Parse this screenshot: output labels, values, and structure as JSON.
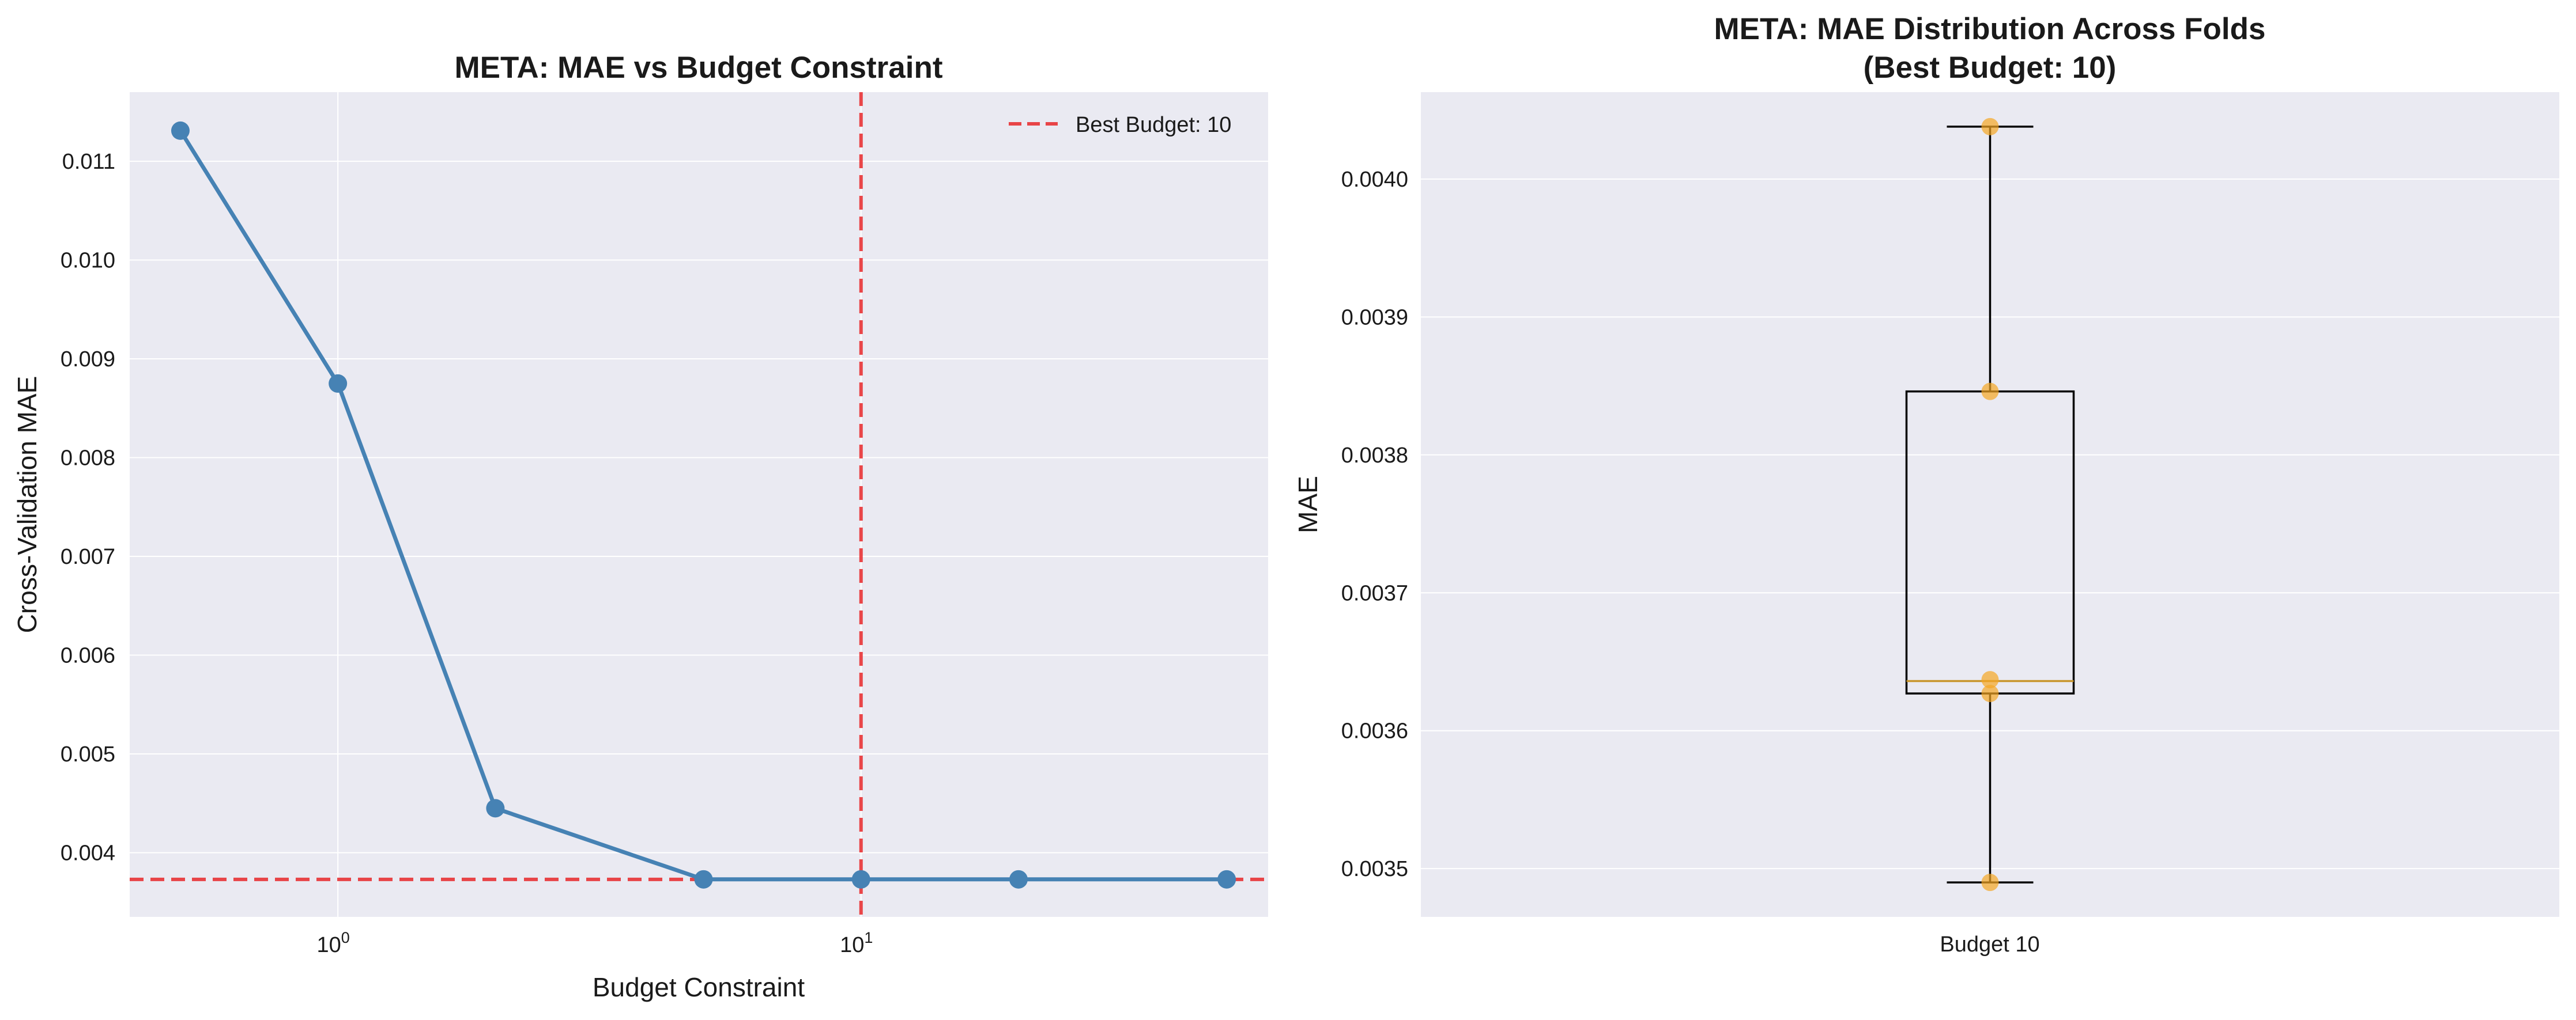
{
  "chart_data": [
    {
      "type": "line",
      "title": "META: MAE vs Budget Constraint",
      "xlabel": "Budget Constraint",
      "ylabel": "Cross-Validation MAE",
      "x_scale": "log",
      "xlim": [
        0.4,
        60
      ],
      "ylim": [
        0.00335,
        0.0117
      ],
      "x_ticks": [
        {
          "value": 1,
          "base": "10",
          "exp": "0"
        },
        {
          "value": 10,
          "base": "10",
          "exp": "1"
        }
      ],
      "y_ticks": [
        {
          "value": 0.004,
          "label": "0.004"
        },
        {
          "value": 0.005,
          "label": "0.005"
        },
        {
          "value": 0.006,
          "label": "0.006"
        },
        {
          "value": 0.007,
          "label": "0.007"
        },
        {
          "value": 0.008,
          "label": "0.008"
        },
        {
          "value": 0.009,
          "label": "0.009"
        },
        {
          "value": 0.01,
          "label": "0.010"
        },
        {
          "value": 0.011,
          "label": "0.011"
        }
      ],
      "series": [
        {
          "color": "#4682b4",
          "x": [
            0.5,
            1,
            2,
            5,
            10,
            20,
            50
          ],
          "y": [
            0.01131,
            0.00875,
            0.00445,
            0.00373,
            0.00373,
            0.00373,
            0.00373
          ]
        }
      ],
      "reference_lines": {
        "color": "#e8282a",
        "vertical_x": 10,
        "horizontal_y": 0.00373
      },
      "legend": {
        "position": "top-right",
        "entries": [
          "Best Budget: 10"
        ]
      },
      "grid": true
    },
    {
      "type": "box",
      "title_line1": "META: MAE Distribution Across Folds",
      "title_line2": "(Best Budget: 10)",
      "ylabel": "MAE",
      "ylim": [
        0.003465,
        0.004063
      ],
      "categories": [
        "Budget 10"
      ],
      "box": {
        "whisker_low": 0.00349,
        "q1": 0.003627,
        "median": 0.003636,
        "q3": 0.003846,
        "whisker_high": 0.004038,
        "median_color": "#c8962d"
      },
      "points": [
        0.004038,
        0.003846,
        0.003637,
        0.003627,
        0.00349
      ],
      "point_color": "#f5a623",
      "y_ticks": [
        {
          "value": 0.0035,
          "label": "0.0035"
        },
        {
          "value": 0.0036,
          "label": "0.0036"
        },
        {
          "value": 0.0037,
          "label": "0.0037"
        },
        {
          "value": 0.0038,
          "label": "0.0038"
        },
        {
          "value": 0.0039,
          "label": "0.0039"
        },
        {
          "value": 0.004,
          "label": "0.0040"
        }
      ],
      "grid": true
    }
  ]
}
